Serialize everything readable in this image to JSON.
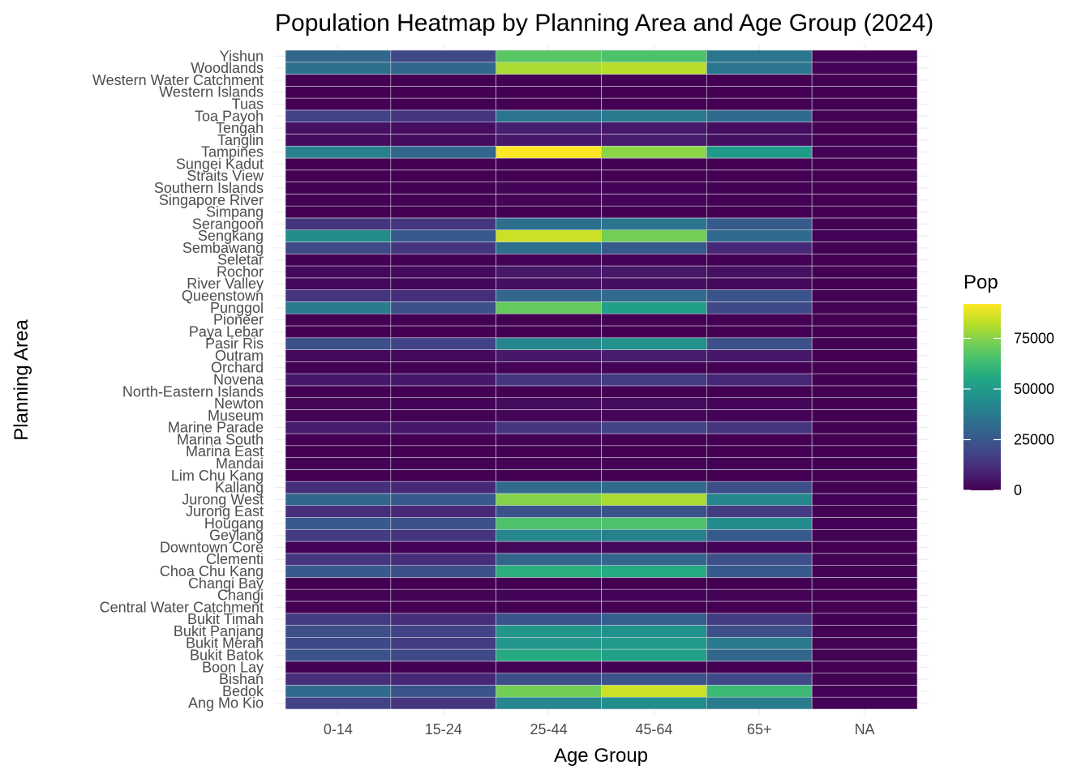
{
  "chart_data": {
    "type": "heatmap",
    "title": "Population Heatmap by Planning Area and Age Group (2024)",
    "xlabel": "Age Group",
    "ylabel": "Planning Area",
    "legend_title": "Pop",
    "legend_ticks": [
      "0",
      "25000",
      "50000",
      "75000"
    ],
    "legend_tick_values": [
      0,
      25000,
      50000,
      75000
    ],
    "color_range": [
      0,
      92000
    ],
    "colormap": "viridis",
    "x_categories": [
      "0-14",
      "15-24",
      "25-44",
      "45-64",
      "65+",
      "NA"
    ],
    "y_categories": [
      "Ang Mo Kio",
      "Bedok",
      "Bishan",
      "Boon Lay",
      "Bukit Batok",
      "Bukit Merah",
      "Bukit Panjang",
      "Bukit Timah",
      "Central Water Catchment",
      "Changi",
      "Changi Bay",
      "Choa Chu Kang",
      "Clementi",
      "Downtown Core",
      "Geylang",
      "Hougang",
      "Jurong East",
      "Jurong West",
      "Kallang",
      "Lim Chu Kang",
      "Mandai",
      "Marina East",
      "Marina South",
      "Marine Parade",
      "Museum",
      "Newton",
      "North-Eastern Islands",
      "Novena",
      "Orchard",
      "Outram",
      "Pasir Ris",
      "Paya Lebar",
      "Pioneer",
      "Punggol",
      "Queenstown",
      "River Valley",
      "Rochor",
      "Seletar",
      "Sembawang",
      "Sengkang",
      "Serangoon",
      "Simpang",
      "Singapore River",
      "Southern Islands",
      "Straits View",
      "Sungei Kadut",
      "Tampines",
      "Tanglin",
      "Tengah",
      "Toa Payoh",
      "Tuas",
      "Western Islands",
      "Western Water Catchment",
      "Woodlands",
      "Yishun"
    ],
    "values": {
      "Ang Mo Kio": [
        18000,
        14000,
        42000,
        45000,
        38000,
        500
      ],
      "Bedok": [
        32000,
        24000,
        72000,
        85000,
        62000,
        500
      ],
      "Bishan": [
        12000,
        10000,
        22000,
        24000,
        20000,
        300
      ],
      "Boon Lay": [
        200,
        200,
        400,
        300,
        100,
        0
      ],
      "Bukit Batok": [
        24000,
        20000,
        56000,
        52000,
        30000,
        400
      ],
      "Bukit Merah": [
        20000,
        16000,
        48000,
        50000,
        38000,
        400
      ],
      "Bukit Panjang": [
        22000,
        18000,
        48000,
        46000,
        22000,
        400
      ],
      "Bukit Timah": [
        16000,
        12000,
        24000,
        28000,
        16000,
        300
      ],
      "Central Water Catchment": [
        0,
        0,
        0,
        0,
        0,
        0
      ],
      "Changi": [
        400,
        400,
        1000,
        800,
        400,
        0
      ],
      "Changi Bay": [
        0,
        0,
        0,
        0,
        0,
        0
      ],
      "Choa Chu Kang": [
        26000,
        22000,
        58000,
        56000,
        26000,
        400
      ],
      "Clementi": [
        14000,
        12000,
        30000,
        30000,
        22000,
        300
      ],
      "Downtown Core": [
        600,
        500,
        2000,
        1800,
        1000,
        0
      ],
      "Geylang": [
        16000,
        14000,
        42000,
        40000,
        26000,
        400
      ],
      "Hougang": [
        26000,
        22000,
        66000,
        66000,
        44000,
        500
      ],
      "Jurong East": [
        12000,
        10000,
        24000,
        24000,
        16000,
        300
      ],
      "Jurong West": [
        30000,
        26000,
        75000,
        80000,
        42000,
        600
      ],
      "Kallang": [
        12000,
        10000,
        32000,
        32000,
        22000,
        300
      ],
      "Lim Chu Kang": [
        0,
        0,
        100,
        100,
        0,
        0
      ],
      "Mandai": [
        200,
        200,
        600,
        500,
        200,
        0
      ],
      "Marina East": [
        0,
        0,
        0,
        0,
        0,
        0
      ],
      "Marina South": [
        0,
        0,
        200,
        100,
        0,
        0
      ],
      "Marine Parade": [
        7000,
        6000,
        14000,
        18000,
        14000,
        200
      ],
      "Museum": [
        400,
        300,
        1000,
        1000,
        600,
        0
      ],
      "Newton": [
        1200,
        1000,
        2600,
        2600,
        1400,
        0
      ],
      "North-Eastern Islands": [
        0,
        0,
        0,
        0,
        0,
        0
      ],
      "Novena": [
        6000,
        6000,
        14000,
        16000,
        10000,
        200
      ],
      "Orchard": [
        200,
        200,
        500,
        500,
        200,
        0
      ],
      "Outram": [
        2000,
        1800,
        6000,
        7000,
        6000,
        100
      ],
      "Pasir Ris": [
        22000,
        18000,
        42000,
        46000,
        22000,
        400
      ],
      "Paya Lebar": [
        0,
        0,
        0,
        0,
        0,
        0
      ],
      "Pioneer": [
        0,
        0,
        100,
        100,
        0,
        0
      ],
      "Punggol": [
        38000,
        22000,
        70000,
        52000,
        20000,
        400
      ],
      "Queenstown": [
        14000,
        12000,
        30000,
        32000,
        24000,
        300
      ],
      "River Valley": [
        2000,
        1600,
        4000,
        4000,
        2000,
        0
      ],
      "Rochor": [
        2000,
        2000,
        6000,
        6000,
        4000,
        100
      ],
      "Seletar": [
        200,
        200,
        600,
        500,
        200,
        0
      ],
      "Sembawang": [
        20000,
        14000,
        34000,
        26000,
        10000,
        300
      ],
      "Sengkang": [
        44000,
        26000,
        85000,
        72000,
        32000,
        500
      ],
      "Serangoon": [
        14000,
        14000,
        34000,
        36000,
        26000,
        300
      ],
      "Simpang": [
        0,
        0,
        0,
        0,
        0,
        0
      ],
      "Singapore River": [
        300,
        300,
        1200,
        900,
        300,
        0
      ],
      "Southern Islands": [
        300,
        300,
        800,
        700,
        300,
        0
      ],
      "Straits View": [
        0,
        0,
        0,
        0,
        0,
        0
      ],
      "Sungei Kadut": [
        100,
        100,
        200,
        200,
        100,
        0
      ],
      "Tampines": [
        40000,
        30000,
        92000,
        76000,
        50000,
        600
      ],
      "Tanglin": [
        3000,
        3000,
        6000,
        7000,
        4000,
        100
      ],
      "Tengah": [
        4000,
        3000,
        8000,
        6000,
        3000,
        100
      ],
      "Toa Payoh": [
        18000,
        14000,
        36000,
        38000,
        32000,
        400
      ],
      "Tuas": [
        0,
        0,
        100,
        100,
        0,
        0
      ],
      "Western Islands": [
        0,
        0,
        0,
        0,
        0,
        0
      ],
      "Western Water Catchment": [
        100,
        100,
        300,
        300,
        100,
        0
      ],
      "Woodlands": [
        34000,
        30000,
        80000,
        82000,
        36000,
        600
      ],
      "Yishun": [
        30000,
        20000,
        68000,
        66000,
        36000,
        500
      ]
    },
    "grid": true,
    "legend_position": "right"
  }
}
